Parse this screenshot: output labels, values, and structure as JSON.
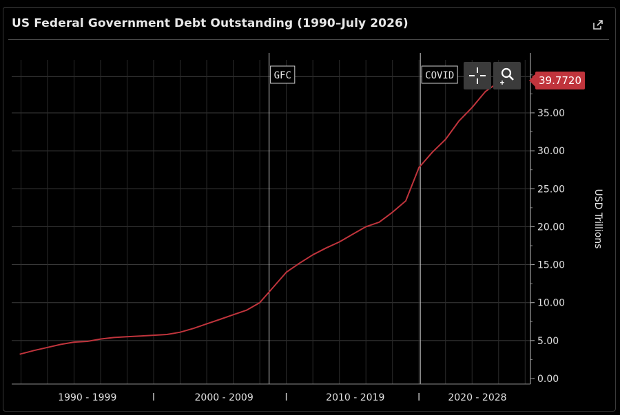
{
  "header": {
    "title": "US Federal Government Debt Outstanding (1990–July 2026)",
    "share_icon": "share-icon"
  },
  "toolbar": {
    "crosshair_icon": "crosshair-icon",
    "zoom_icon": "zoom-in-icon"
  },
  "chart_data": {
    "type": "line",
    "title": "US Federal Government Debt Outstanding (1990–July 2026)",
    "ylabel": "USD Trillions",
    "ylim": [
      0,
      43
    ],
    "yticks": [
      0,
      5,
      10,
      15,
      20,
      25,
      30,
      35
    ],
    "ytick_labels": [
      "0.00",
      "5.00",
      "10.00",
      "15.00",
      "20.00",
      "25.00",
      "30.00",
      "35.00"
    ],
    "x_groups": [
      "1990 - 1999",
      "2000 - 2009",
      "2010 - 2019",
      "2020 - 2028"
    ],
    "xlim": [
      1989.3,
      2028.4
    ],
    "grid": true,
    "line_color": "#c0343c",
    "last_value_label": "39.7720",
    "events": [
      {
        "x": 2008.7,
        "label": "GFC"
      },
      {
        "x": 2020.1,
        "label": "COVID"
      }
    ],
    "series": [
      {
        "x": [
          1989.9,
          1991,
          1992,
          1993,
          1994,
          1995,
          1996,
          1997,
          1998,
          1999,
          2000,
          2001,
          2002,
          2003,
          2004,
          2005,
          2006,
          2007,
          2008,
          2009,
          2010,
          2011,
          2012,
          2013,
          2014,
          2015,
          2016,
          2017,
          2018,
          2019,
          2020,
          2021,
          2022,
          2023,
          2024,
          2025,
          2026.6
        ],
        "y": [
          3.2,
          3.7,
          4.1,
          4.5,
          4.8,
          4.9,
          5.2,
          5.4,
          5.5,
          5.6,
          5.7,
          5.8,
          6.1,
          6.6,
          7.2,
          7.8,
          8.4,
          9.0,
          10.0,
          12.0,
          14.0,
          15.2,
          16.3,
          17.2,
          18.0,
          19.0,
          20.0,
          20.6,
          21.9,
          23.4,
          27.8,
          29.8,
          31.5,
          33.9,
          35.7,
          37.8,
          39.772
        ]
      }
    ]
  }
}
